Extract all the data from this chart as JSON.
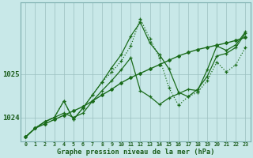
{
  "title": "Graphe pression niveau de la mer (hPa)",
  "bg_color": "#c8e8e8",
  "plot_bg_color": "#c8e8e8",
  "grid_color": "#9bbfbf",
  "x_labels": [
    "0",
    "1",
    "2",
    "3",
    "4",
    "5",
    "6",
    "7",
    "8",
    "9",
    "10",
    "11",
    "12",
    "13",
    "14",
    "15",
    "16",
    "17",
    "18",
    "19",
    "20",
    "21",
    "22",
    "23"
  ],
  "yticks": [
    1024,
    1025
  ],
  "ymin": 1023.45,
  "ymax": 1026.65,
  "series": [
    {
      "values": [
        1023.55,
        1023.75,
        1023.85,
        1023.95,
        1024.05,
        1024.15,
        1024.25,
        1024.38,
        1024.52,
        1024.65,
        1024.8,
        1024.92,
        1025.02,
        1025.12,
        1025.22,
        1025.32,
        1025.42,
        1025.5,
        1025.57,
        1025.62,
        1025.67,
        1025.72,
        1025.78,
        1025.85
      ],
      "color": "#1a6b1a",
      "lw": 1.0,
      "marker": "D",
      "ms": 2.0,
      "ls": "-",
      "zorder": 3
    },
    {
      "values": [
        1023.55,
        1023.75,
        1023.9,
        1024.0,
        1024.1,
        1024.0,
        1024.1,
        1024.38,
        1024.62,
        1024.85,
        1025.1,
        1025.38,
        1024.62,
        1024.48,
        1024.3,
        1024.45,
        1024.55,
        1024.65,
        1024.62,
        1025.1,
        1025.65,
        1025.55,
        1025.68,
        1025.98
      ],
      "color": "#1a6b1a",
      "lw": 0.9,
      "marker": "+",
      "ms": 3.5,
      "ls": "-",
      "zorder": 4
    },
    {
      "values": [
        1023.55,
        1023.75,
        1023.9,
        1024.0,
        1024.38,
        1023.95,
        1024.22,
        1024.52,
        1024.82,
        1025.15,
        1025.45,
        1025.88,
        1026.2,
        1025.72,
        1025.45,
        1025.12,
        1024.58,
        1024.48,
        1024.65,
        1024.95,
        1025.42,
        1025.48,
        1025.62,
        1025.95
      ],
      "color": "#1a6b1a",
      "lw": 0.9,
      "marker": "+",
      "ms": 3.5,
      "ls": "-",
      "zorder": 5
    },
    {
      "values": [
        1023.55,
        1023.75,
        1023.9,
        1024.0,
        1024.38,
        1023.95,
        1024.22,
        1024.52,
        1024.82,
        1025.05,
        1025.3,
        1025.65,
        1026.28,
        1025.82,
        1025.38,
        1024.68,
        1024.28,
        1024.48,
        1024.58,
        1024.85,
        1025.28,
        1025.05,
        1025.22,
        1025.62
      ],
      "color": "#1a6b1a",
      "lw": 0.9,
      "marker": "+",
      "ms": 3.5,
      "ls": ":",
      "zorder": 2
    }
  ]
}
